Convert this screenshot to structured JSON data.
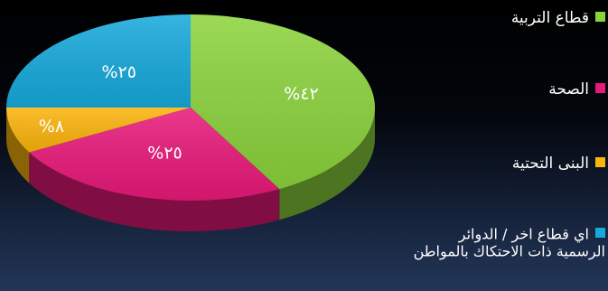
{
  "chart_data": {
    "type": "pie",
    "categories": [
      "قطاع التربية",
      "الصحة",
      "البنى التحتية",
      "اي قطاع اخر / الدوائر الرسمية ذات الاحتكاك بالمواطن"
    ],
    "values": [
      42,
      25,
      8,
      25
    ],
    "data_labels": [
      "%٤٢",
      "%٢٥",
      "%٨",
      "%٢٥"
    ],
    "colors": [
      "#8bd33c",
      "#e8197a",
      "#fbb40c",
      "#16a9dc"
    ],
    "style": "3d",
    "legend_position": "right"
  },
  "legend": {
    "items": [
      {
        "label": "قطاع التربية",
        "color": "#8bd33c"
      },
      {
        "label": "الصحة",
        "color": "#e8197a"
      },
      {
        "label": "البنى التحتية",
        "color": "#fbb40c"
      },
      {
        "label": "اي قطاع اخر / الدوائر الرسمية ذات الاحتكاك بالمواطن",
        "color": "#16a9dc"
      }
    ]
  }
}
